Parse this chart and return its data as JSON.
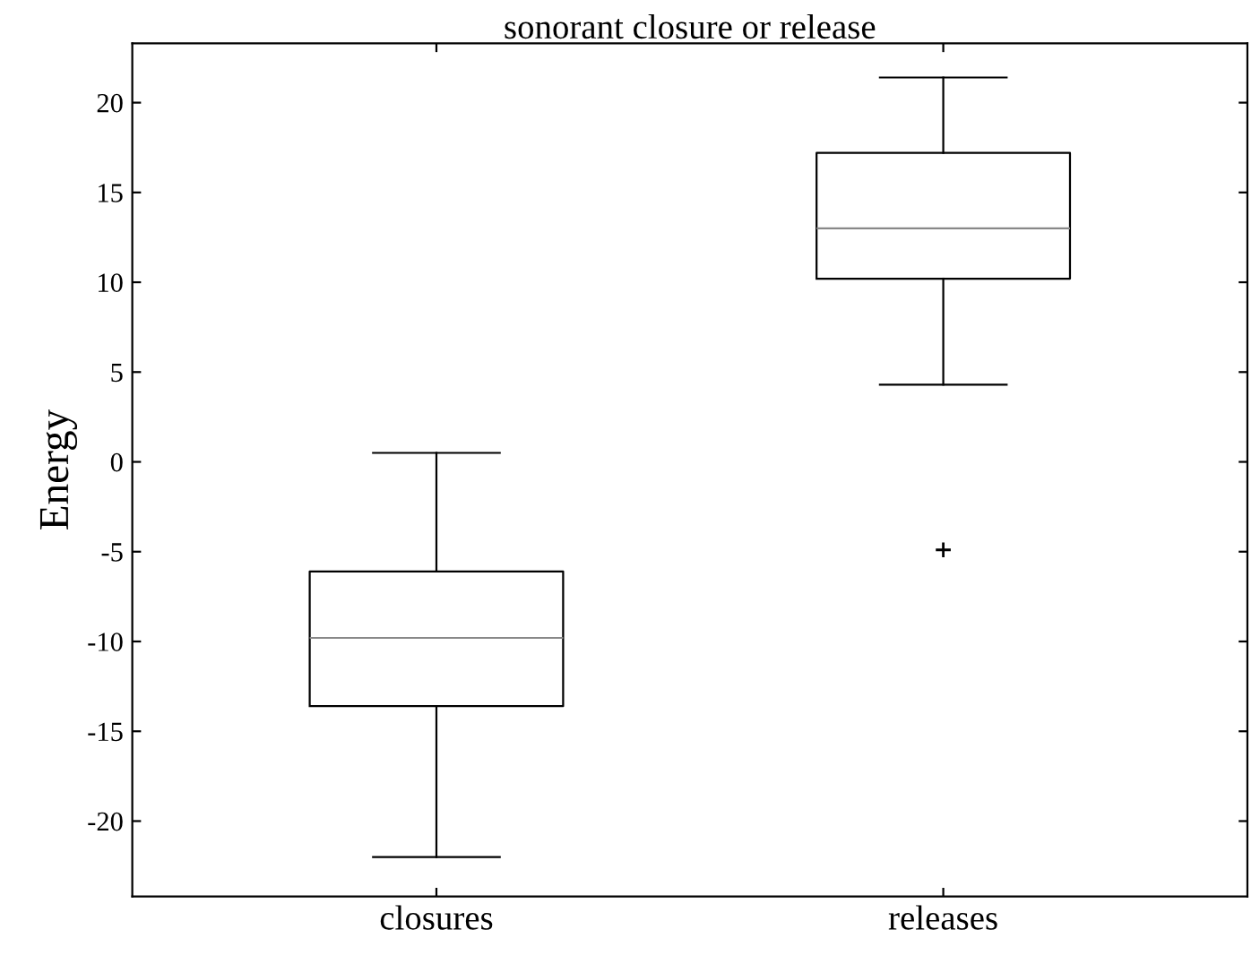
{
  "chart_data": {
    "type": "box",
    "title": "sonorant closure or release",
    "ylabel": "Energy",
    "categories": [
      "closures",
      "releases"
    ],
    "boxes": [
      {
        "low": -22,
        "q1": -13.6,
        "median": -9.8,
        "q3": -6.1,
        "high": 0.5
      },
      {
        "low": 4.3,
        "q1": 10.2,
        "median": 13,
        "q3": 17.2,
        "high": 21.4,
        "outliers": [
          -4.9
        ]
      }
    ],
    "ylim": [
      -24.2,
      23.3
    ],
    "yticks": [
      -20,
      -15,
      -10,
      -5,
      0,
      5,
      10,
      15,
      20
    ],
    "grid": false,
    "legend": false
  }
}
